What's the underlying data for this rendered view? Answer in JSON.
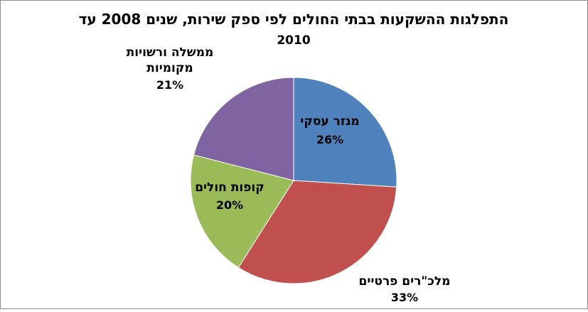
{
  "chart_data": {
    "type": "pie",
    "title_line1": "התפלגות ההשקעות בבתי החולים לפי ספק שירות, שנים 2008 עד",
    "title_line2": "2010",
    "slices": [
      {
        "label_lines": [
          "מגזר עסקי"
        ],
        "value": 26,
        "pct_label": "26%",
        "color": "#4f81bd"
      },
      {
        "label_lines": [
          "מלכ\"רים פרטיים"
        ],
        "value": 33,
        "pct_label": "33%",
        "color": "#c0504d"
      },
      {
        "label_lines": [
          "קופות חולים"
        ],
        "value": 20,
        "pct_label": "20%",
        "color": "#9bbb59"
      },
      {
        "label_lines": [
          "ממשלה ורשויות",
          "מקומיות"
        ],
        "value": 21,
        "pct_label": "21%",
        "color": "#8064a2"
      }
    ],
    "start": "12 o'clock",
    "direction": "clockwise"
  }
}
